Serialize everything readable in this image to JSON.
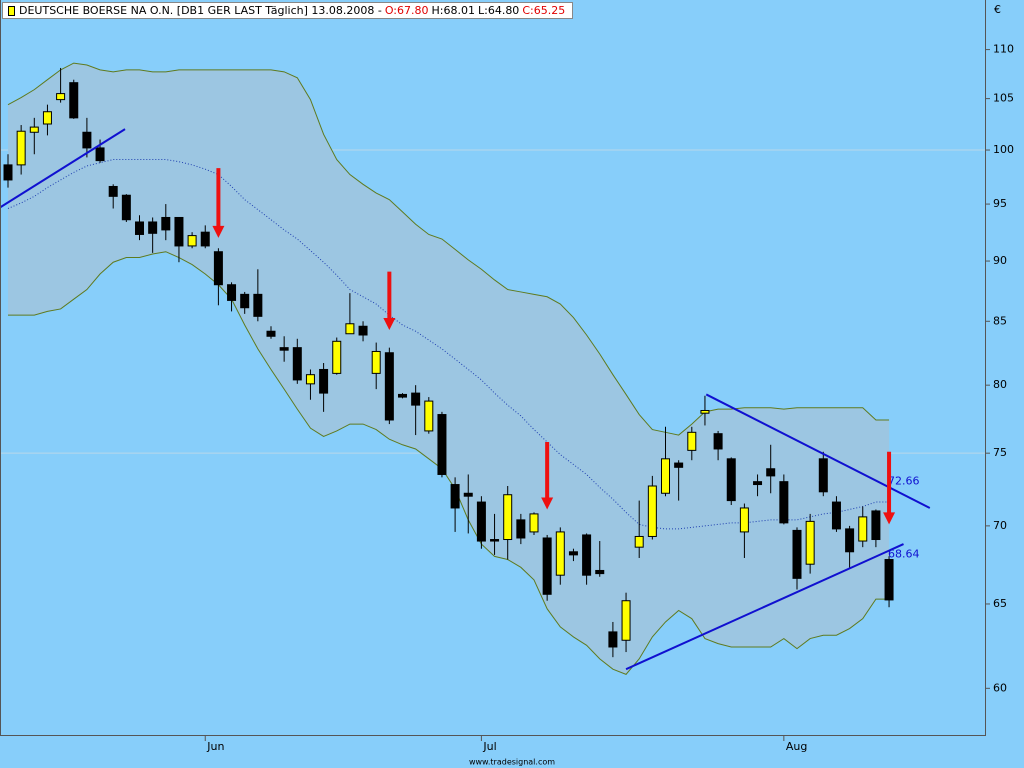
{
  "chart_data": {
    "type": "candlestick",
    "title": "DEUTSCHE BOERSE NA O.N. [DB1 GER LAST Täglich] 13.08.2008 -",
    "ohlc_labels": [
      "O:67.80",
      "H:68.01",
      "L:64.80",
      "C:65.25"
    ],
    "ohlc_label_colors": [
      "#e00000",
      "#000000",
      "#000000",
      "#e00000"
    ],
    "currency": "€",
    "footer": "www.tradesignal.com",
    "categories": [
      null,
      null,
      null,
      null,
      null,
      null,
      null,
      null,
      null,
      null,
      null,
      null,
      null,
      null,
      null,
      "Jun",
      null,
      null,
      null,
      null,
      null,
      null,
      null,
      null,
      null,
      null,
      null,
      null,
      null,
      null,
      null,
      null,
      null,
      null,
      null,
      null,
      "Jul",
      null,
      null,
      null,
      null,
      null,
      null,
      null,
      null,
      null,
      null,
      null,
      null,
      null,
      null,
      null,
      null,
      null,
      null,
      null,
      null,
      null,
      null,
      "Aug",
      null,
      null,
      null,
      null,
      null,
      null,
      null,
      null
    ],
    "open": [
      98.6,
      98.6,
      101.7,
      102.5,
      104.9,
      106.6,
      101.7,
      100.2,
      96.6,
      95.8,
      93.4,
      93.4,
      93.8,
      93.8,
      91.3,
      92.5,
      90.8,
      88.0,
      87.2,
      87.2,
      84.2,
      82.9,
      82.9,
      80.1,
      81.2,
      80.9,
      84.0,
      84.6,
      80.9,
      82.5,
      79.3,
      79.4,
      76.6,
      77.8,
      72.8,
      72.2,
      71.6,
      69.1,
      69.1,
      70.4,
      69.6,
      69.2,
      66.8,
      68.3,
      69.4,
      67.1,
      63.3,
      62.8,
      68.6,
      69.3,
      72.2,
      74.3,
      75.2,
      77.9,
      76.4,
      74.6,
      69.6,
      73.0,
      73.9,
      73.0,
      69.7,
      67.5,
      74.6,
      71.6,
      69.8,
      69.0,
      71.0,
      67.8
    ],
    "high": [
      99.6,
      102.4,
      103.1,
      104.4,
      108.1,
      106.9,
      103.1,
      101.0,
      96.8,
      95.9,
      94.0,
      93.8,
      95.0,
      93.8,
      92.5,
      93.1,
      91.1,
      88.2,
      87.4,
      89.3,
      84.6,
      83.8,
      83.6,
      81.2,
      81.7,
      83.7,
      87.3,
      85.0,
      83.3,
      82.9,
      79.4,
      80.0,
      79.1,
      78.0,
      73.3,
      73.5,
      72.0,
      70.8,
      72.7,
      70.8,
      70.9,
      69.4,
      69.9,
      68.5,
      69.5,
      69.0,
      63.9,
      65.7,
      71.7,
      73.4,
      76.9,
      74.5,
      76.9,
      79.2,
      76.6,
      74.7,
      71.5,
      73.5,
      75.6,
      73.5,
      69.9,
      70.8,
      75.1,
      72.0,
      70.0,
      71.3,
      71.1,
      68.01
    ],
    "low": [
      96.5,
      97.7,
      99.6,
      101.4,
      104.6,
      103.0,
      99.3,
      98.8,
      94.6,
      93.4,
      91.8,
      90.7,
      91.8,
      89.9,
      91.1,
      91.1,
      86.3,
      85.8,
      85.6,
      85.0,
      83.6,
      81.8,
      80.1,
      78.9,
      78.0,
      80.8,
      84.0,
      83.4,
      79.7,
      77.1,
      79.0,
      76.3,
      76.4,
      73.3,
      69.6,
      69.5,
      68.5,
      68.1,
      67.8,
      68.8,
      69.4,
      65.2,
      66.2,
      67.7,
      66.2,
      66.7,
      61.8,
      62.1,
      67.9,
      69.1,
      72.0,
      71.7,
      74.5,
      77.0,
      74.5,
      71.4,
      67.9,
      72.0,
      72.2,
      70.1,
      65.9,
      66.9,
      72.0,
      69.6,
      67.2,
      68.6,
      68.6,
      64.8
    ],
    "close": [
      97.2,
      101.8,
      102.2,
      103.7,
      105.5,
      103.1,
      100.2,
      99.0,
      95.7,
      93.6,
      92.3,
      92.4,
      92.7,
      91.3,
      92.2,
      91.3,
      88.0,
      86.7,
      86.1,
      85.4,
      83.8,
      82.7,
      80.4,
      80.8,
      79.4,
      83.4,
      84.8,
      83.9,
      82.6,
      77.4,
      79.1,
      78.5,
      78.8,
      73.5,
      71.2,
      72.0,
      69.0,
      69.0,
      72.1,
      69.2,
      70.8,
      65.6,
      69.6,
      68.1,
      66.8,
      66.9,
      62.4,
      65.2,
      69.3,
      72.7,
      74.6,
      74.0,
      76.5,
      78.1,
      75.3,
      71.7,
      71.2,
      72.8,
      73.4,
      70.2,
      66.6,
      70.3,
      72.3,
      69.8,
      68.3,
      70.6,
      69.1,
      65.25
    ],
    "upper_band": [
      104.4,
      105.1,
      105.9,
      106.9,
      107.9,
      108.6,
      108.4,
      107.9,
      107.7,
      107.9,
      107.9,
      107.7,
      107.7,
      107.9,
      107.9,
      107.9,
      107.9,
      107.9,
      107.9,
      107.9,
      107.9,
      107.7,
      107.1,
      104.9,
      101.5,
      99.1,
      97.7,
      96.8,
      96.0,
      95.4,
      94.3,
      93.2,
      92.3,
      91.9,
      91.0,
      90.1,
      89.3,
      88.4,
      87.6,
      87.4,
      87.2,
      87.0,
      86.4,
      85.3,
      83.9,
      82.4,
      80.8,
      79.3,
      77.8,
      76.7,
      76.5,
      76.3,
      77.1,
      78.0,
      78.2,
      78.2,
      78.3,
      78.3,
      78.3,
      78.2,
      78.3,
      78.3,
      78.3,
      78.3,
      78.3,
      78.3,
      77.4,
      77.4
    ],
    "middle_band": [
      94.6,
      95.1,
      95.7,
      96.5,
      97.2,
      97.9,
      98.5,
      98.8,
      99.1,
      99.1,
      99.1,
      99.1,
      99.1,
      98.9,
      98.6,
      98.2,
      97.7,
      96.6,
      95.4,
      94.5,
      93.6,
      92.7,
      91.9,
      90.9,
      89.9,
      88.8,
      87.6,
      87.0,
      86.4,
      85.5,
      84.7,
      84.2,
      83.5,
      82.8,
      82.0,
      81.2,
      80.4,
      79.4,
      78.5,
      77.7,
      76.7,
      75.8,
      74.9,
      74.2,
      73.5,
      72.6,
      71.8,
      70.9,
      70.1,
      69.9,
      69.8,
      69.8,
      69.9,
      70.0,
      70.1,
      70.2,
      70.2,
      70.3,
      70.4,
      70.4,
      70.4,
      70.6,
      70.8,
      70.9,
      71.1,
      71.3,
      71.6,
      71.6
    ],
    "lower_band": [
      85.5,
      85.5,
      85.5,
      85.8,
      86.0,
      86.8,
      87.6,
      88.9,
      89.9,
      90.3,
      90.3,
      90.6,
      90.8,
      90.3,
      89.7,
      88.9,
      88.0,
      86.8,
      84.7,
      82.8,
      81.2,
      79.7,
      78.2,
      76.8,
      76.2,
      76.6,
      77.1,
      77.1,
      76.7,
      76.0,
      75.6,
      75.3,
      74.6,
      73.9,
      72.5,
      70.4,
      68.8,
      68.0,
      67.8,
      67.3,
      66.5,
      64.7,
      63.6,
      63.0,
      62.5,
      61.7,
      61.1,
      60.8,
      61.7,
      63.0,
      63.9,
      64.6,
      64.1,
      62.9,
      62.6,
      62.4,
      62.4,
      62.4,
      62.4,
      62.9,
      62.3,
      62.9,
      63.1,
      63.1,
      63.5,
      64.1,
      65.3,
      65.3
    ],
    "up_color": "#ffff00",
    "down_color": "#000000",
    "band_fill": "#9cc6e2",
    "band_line_color": "#5f7a1e",
    "middle_color": "#1f3fb0",
    "trend_color": "#1010d0",
    "signal_color": "#ee1010",
    "trendlines": [
      {
        "x": [
          -0.6,
          8.9
        ],
        "values": [
          94.7,
          102.0
        ]
      },
      {
        "x": [
          53.1,
          70.1
        ],
        "values": [
          79.3,
          71.2
        ]
      },
      {
        "x": [
          47.0,
          68.1
        ],
        "values": [
          61.1,
          68.8
        ]
      }
    ],
    "trend_labels": [
      72.66,
      68.64
    ],
    "signals": [
      {
        "x": 16,
        "values": [
          98.3,
          92.0
        ]
      },
      {
        "x": 29,
        "values": [
          89.1,
          84.3
        ]
      },
      {
        "x": 41,
        "values": [
          75.8,
          71.1
        ]
      },
      {
        "x": 67,
        "values": [
          75.1,
          70.1
        ]
      }
    ],
    "log_scale": true,
    "ylim": [
      57.4,
      115.3
    ],
    "yticks": [
      60,
      65,
      70,
      75,
      80,
      85,
      90,
      95,
      100,
      105,
      110
    ],
    "grid": [
      75,
      100
    ]
  }
}
